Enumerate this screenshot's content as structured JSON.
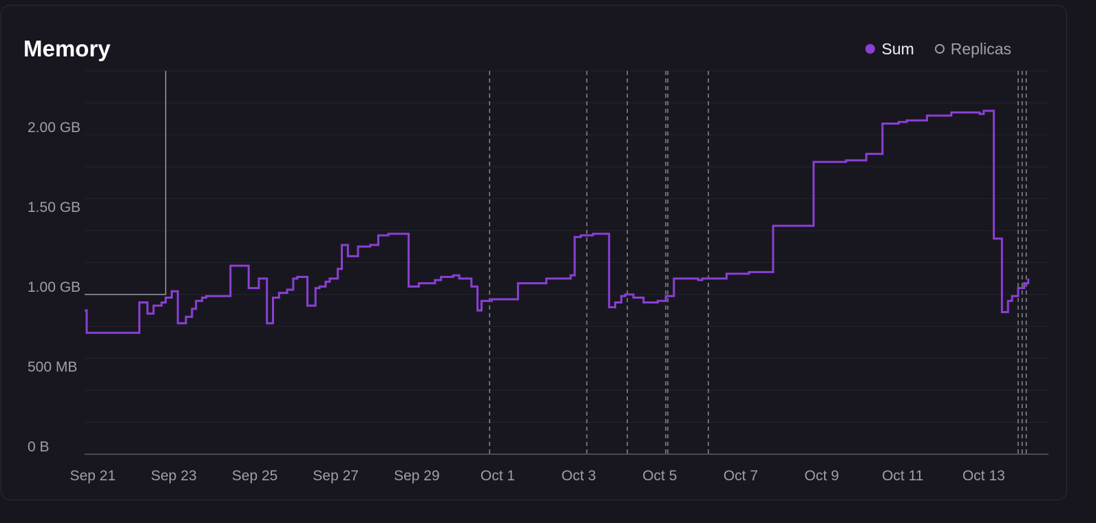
{
  "colors": {
    "background": "#18171f",
    "sum": "#8b3fd6",
    "replicas": "#9c9aa6",
    "grid": "#25242e",
    "axis": "#5b5a66",
    "text": "#a09eab"
  },
  "chart_data": {
    "type": "line",
    "title": "Memory",
    "xlabel": "",
    "ylabel": "",
    "legend": [
      {
        "name": "Sum",
        "color": "#8b3fd6",
        "filled": true
      },
      {
        "name": "Replicas",
        "color": "#9c9aa6",
        "filled": false
      }
    ],
    "legend_position": "top-right",
    "y_ticks": [
      {
        "value": 0,
        "label": "0 B"
      },
      {
        "value": 0.5,
        "label": "500 MB"
      },
      {
        "value": 1.0,
        "label": "1.00 GB"
      },
      {
        "value": 1.5,
        "label": "1.50 GB"
      },
      {
        "value": 2.0,
        "label": "2.00 GB"
      }
    ],
    "ylim": [
      0,
      2.4
    ],
    "xlim": [
      20.8,
      44.6
    ],
    "x_ticks": [
      {
        "value": 21,
        "label": "Sep 21"
      },
      {
        "value": 23,
        "label": "Sep 23"
      },
      {
        "value": 25,
        "label": "Sep 25"
      },
      {
        "value": 27,
        "label": "Sep 27"
      },
      {
        "value": 29,
        "label": "Sep 29"
      },
      {
        "value": 31,
        "label": "Oct 1"
      },
      {
        "value": 33,
        "label": "Oct 3"
      },
      {
        "value": 35,
        "label": "Oct 5"
      },
      {
        "value": 37,
        "label": "Oct 7"
      },
      {
        "value": 39,
        "label": "Oct 9"
      },
      {
        "value": 41,
        "label": "Oct 11"
      },
      {
        "value": 43,
        "label": "Oct 13"
      }
    ],
    "series": [
      {
        "name": "Sum",
        "step": true,
        "x": [
          20.8,
          20.85,
          21.95,
          22.15,
          22.35,
          22.5,
          22.7,
          22.8,
          22.95,
          23.1,
          23.3,
          23.45,
          23.55,
          23.7,
          23.8,
          24.4,
          24.85,
          25.1,
          25.3,
          25.45,
          25.6,
          25.8,
          25.95,
          26.05,
          26.3,
          26.5,
          26.6,
          26.75,
          26.85,
          27.05,
          27.15,
          27.3,
          27.55,
          27.85,
          28.05,
          28.3,
          28.5,
          28.8,
          29.05,
          29.45,
          29.6,
          29.9,
          30.05,
          30.35,
          30.5,
          30.6,
          30.85,
          31.5,
          32.2,
          32.8,
          32.9,
          33.05,
          33.35,
          33.75,
          33.9,
          34.05,
          34.15,
          34.35,
          34.6,
          34.95,
          35.15,
          35.35,
          35.95,
          36.05,
          36.65,
          37.2,
          37.8,
          38.8,
          39.6,
          40.1,
          40.5,
          40.9,
          41.1,
          41.6,
          42.2,
          42.9,
          43.0,
          43.1,
          43.25,
          43.45,
          43.6,
          43.7,
          43.85,
          44.0,
          44.1
        ],
        "y": [
          0.9,
          0.76,
          0.76,
          0.95,
          0.88,
          0.93,
          0.95,
          0.98,
          1.02,
          0.82,
          0.86,
          0.91,
          0.96,
          0.98,
          0.99,
          1.18,
          1.04,
          1.1,
          0.82,
          0.98,
          1.01,
          1.03,
          1.1,
          1.11,
          0.93,
          1.04,
          1.05,
          1.08,
          1.1,
          1.16,
          1.31,
          1.24,
          1.3,
          1.31,
          1.37,
          1.38,
          1.38,
          1.05,
          1.07,
          1.09,
          1.11,
          1.12,
          1.1,
          1.05,
          0.9,
          0.96,
          0.97,
          1.07,
          1.1,
          1.12,
          1.36,
          1.37,
          1.38,
          0.92,
          0.95,
          0.99,
          1.0,
          0.98,
          0.95,
          0.96,
          0.99,
          1.1,
          1.09,
          1.1,
          1.13,
          1.14,
          1.43,
          1.83,
          1.84,
          1.88,
          2.07,
          2.08,
          2.09,
          2.12,
          2.14,
          2.13,
          2.15,
          2.15,
          1.35,
          0.89,
          0.96,
          0.99,
          1.04,
          1.07,
          1.1
        ]
      },
      {
        "name": "Replicas",
        "step": true,
        "x": [
          20.8,
          22.8,
          22.8
        ],
        "y": [
          1.0,
          1.0,
          2.4
        ]
      }
    ],
    "event_markers_x": [
      30.8,
      33.2,
      34.2,
      35.15,
      35.2,
      36.2,
      43.85,
      43.95,
      44.05
    ],
    "grid": true
  }
}
